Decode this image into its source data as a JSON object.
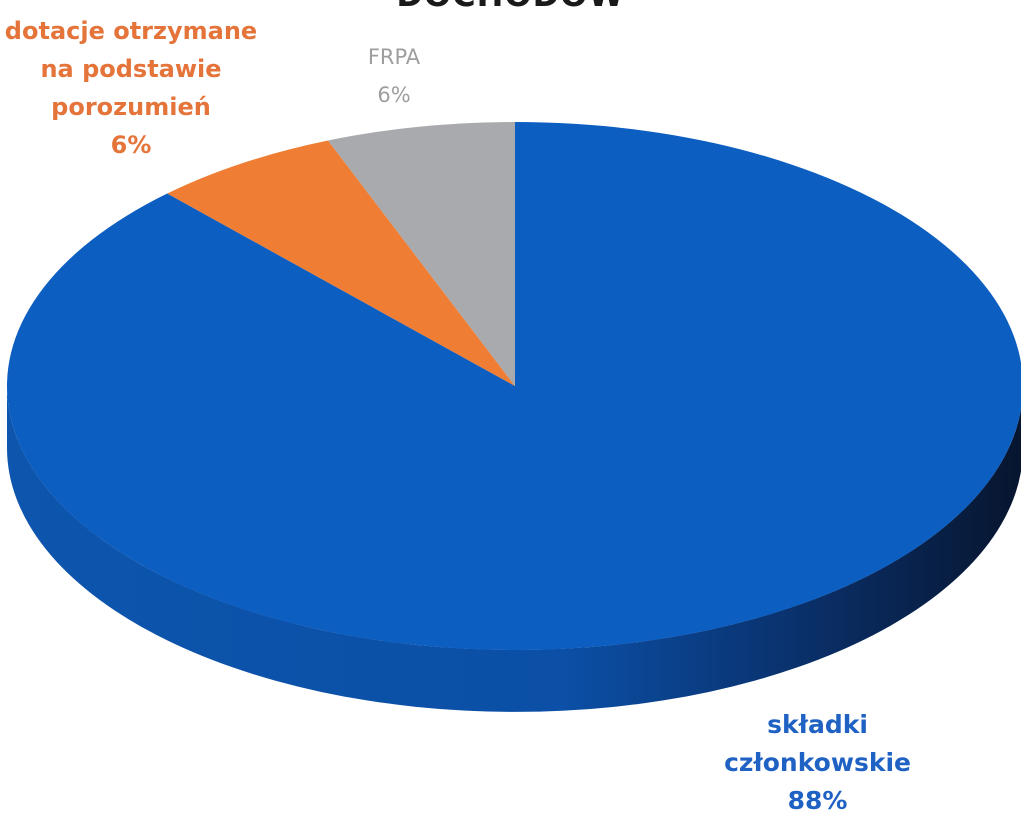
{
  "chart_data": {
    "type": "pie",
    "title": "DOCHODÓW",
    "slices": [
      {
        "label_lines": [
          "składki",
          "członkowskie"
        ],
        "value_label": "88%",
        "value": 88,
        "color": "#0d5ec1"
      },
      {
        "label_lines": [
          "dotacje otrzymane",
          "na podstawie",
          "porozumień"
        ],
        "value_label": "6%",
        "value": 6,
        "color": "#ef7d33"
      },
      {
        "label_lines": [
          "FRPA"
        ],
        "value_label": "6%",
        "value": 6,
        "color": "#a8aaad"
      }
    ],
    "style": "3d"
  }
}
